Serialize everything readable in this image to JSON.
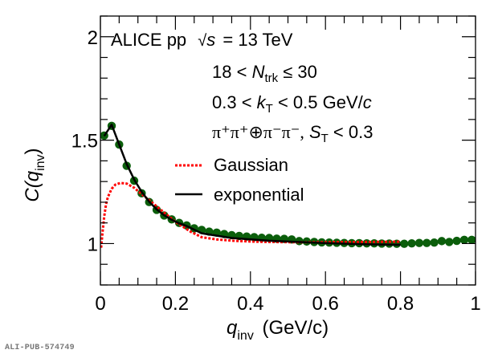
{
  "chart_data": {
    "type": "scatter",
    "title": "",
    "xlabel": {
      "main": "q",
      "sub": "inv",
      "unit": "(GeV/c)"
    },
    "ylabel": {
      "main": "C(q",
      "sub": "inv",
      "close": ")"
    },
    "xlim": [
      0,
      1
    ],
    "ylim": [
      0.8,
      2.1
    ],
    "grid": false,
    "x_ticks": [
      0,
      0.2,
      0.4,
      0.6,
      0.8,
      1
    ],
    "x_tick_labels": [
      "0",
      "0.2",
      "0.4",
      "0.6",
      "0.8",
      "1"
    ],
    "x_minor_step": 0.05,
    "y_ticks": [
      1,
      1.5,
      2
    ],
    "y_tick_labels": [
      "1",
      "1.5",
      "2"
    ],
    "y_minor_step": 0.1,
    "annotations": {
      "experiment": "ALICE pp",
      "energy": "= 13 TeV",
      "energy_symbol": "s",
      "mult_pre": "18 <",
      "mult_var": "N",
      "mult_sub": "trk",
      "mult_post": "≤ 30",
      "kt_pre": "0.3 <",
      "kt_var": "k",
      "kt_sub": "T",
      "kt_post": "< 0.5 GeV/",
      "kt_unit": "c",
      "pair": "π⁺π⁺⊕π⁻π⁻,",
      "st_var": "S",
      "st_sub": "T",
      "st_post": "< 0.3"
    },
    "legend": [
      {
        "label": "Gaussian",
        "style": "dotted",
        "color": "#ff0000"
      },
      {
        "label": "exponential",
        "style": "solid",
        "color": "#000000"
      }
    ],
    "legend_position": "top-right",
    "series": [
      {
        "name": "data",
        "color": "#0b5e0b",
        "x": [
          0.01,
          0.03,
          0.05,
          0.07,
          0.09,
          0.11,
          0.13,
          0.15,
          0.17,
          0.19,
          0.21,
          0.23,
          0.25,
          0.27,
          0.29,
          0.31,
          0.33,
          0.35,
          0.37,
          0.39,
          0.41,
          0.43,
          0.45,
          0.47,
          0.49,
          0.51,
          0.53,
          0.55,
          0.57,
          0.59,
          0.61,
          0.63,
          0.65,
          0.67,
          0.69,
          0.71,
          0.73,
          0.75,
          0.77,
          0.79,
          0.81,
          0.83,
          0.85,
          0.87,
          0.89,
          0.91,
          0.93,
          0.95,
          0.97,
          0.99
        ],
        "y": [
          1.522,
          1.569,
          1.479,
          1.376,
          1.304,
          1.243,
          1.201,
          1.163,
          1.136,
          1.117,
          1.1,
          1.088,
          1.074,
          1.066,
          1.058,
          1.053,
          1.046,
          1.041,
          1.037,
          1.034,
          1.031,
          1.028,
          1.027,
          1.024,
          1.023,
          1.02,
          1.012,
          1.01,
          1.008,
          1.006,
          1.005,
          1.004,
          1.003,
          1.002,
          1.002,
          1.001,
          1.001,
          1.0,
          1.0,
          0.999,
          0.999,
          1.001,
          1.003,
          1.003,
          1.005,
          1.012,
          1.008,
          1.013,
          1.018,
          1.018
        ]
      },
      {
        "name": "Gaussian",
        "color": "#ff0000",
        "x": [
          0.002,
          0.006,
          0.01,
          0.015,
          0.02,
          0.03,
          0.04,
          0.053,
          0.07,
          0.09,
          0.107,
          0.13,
          0.16,
          0.2,
          0.24,
          0.27,
          0.31,
          0.353,
          0.4,
          0.44,
          0.5,
          0.6,
          0.7,
          0.8
        ],
        "y": [
          0.98,
          1.06,
          1.13,
          1.19,
          1.225,
          1.265,
          1.285,
          1.293,
          1.29,
          1.27,
          1.243,
          1.21,
          1.165,
          1.105,
          1.058,
          1.031,
          1.02,
          1.014,
          1.01,
          1.008,
          1.007,
          1.007,
          1.008,
          1.009
        ]
      },
      {
        "name": "exponential",
        "color": "#000000",
        "x": [
          0.01,
          0.03,
          0.05,
          0.07,
          0.09,
          0.11,
          0.13,
          0.15,
          0.17,
          0.19,
          0.21,
          0.23,
          0.27,
          0.3,
          0.35,
          0.4,
          0.45,
          0.5,
          0.6,
          0.7,
          0.8
        ],
        "y": [
          1.52,
          1.575,
          1.48,
          1.385,
          1.31,
          1.25,
          1.203,
          1.165,
          1.137,
          1.115,
          1.098,
          1.085,
          1.05,
          1.041,
          1.027,
          1.02,
          1.014,
          1.01,
          1.002,
          0.997,
          0.994
        ]
      }
    ]
  },
  "footer": {
    "id": "ALI-PUB-574749"
  }
}
